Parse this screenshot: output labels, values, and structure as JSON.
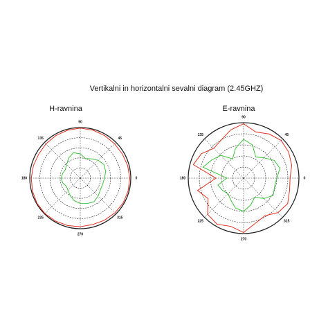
{
  "title": "Vertikalni in horizontalni sevalni diagram (2.45GHZ)",
  "chart_data": [
    {
      "type": "polar",
      "title": "H-ravnina",
      "angle_ticks": [
        0,
        45,
        90,
        135,
        180,
        225,
        270,
        315
      ],
      "rlim": [
        0,
        5
      ],
      "rticks": [
        1,
        2,
        3,
        4,
        5
      ],
      "theta": [
        0,
        15,
        30,
        45,
        60,
        75,
        90,
        105,
        120,
        135,
        150,
        165,
        180,
        195,
        210,
        225,
        240,
        255,
        270,
        285,
        300,
        315,
        330,
        345
      ],
      "series": [
        {
          "color": "#e03020",
          "values": [
            4.9,
            4.85,
            4.8,
            4.8,
            4.85,
            4.9,
            4.95,
            4.9,
            4.85,
            4.8,
            4.75,
            4.8,
            4.85,
            4.9,
            4.95,
            4.95,
            4.9,
            4.85,
            4.8,
            4.75,
            4.8,
            4.85,
            4.9,
            4.9
          ]
        },
        {
          "color": "#40c040",
          "values": [
            2.4,
            2.6,
            2.7,
            2.5,
            2.2,
            2.0,
            2.4,
            2.6,
            2.3,
            1.9,
            1.7,
            1.8,
            1.9,
            1.8,
            1.6,
            1.7,
            2.0,
            2.3,
            2.5,
            2.6,
            2.7,
            2.5,
            2.3,
            2.3
          ]
        }
      ]
    },
    {
      "type": "polar",
      "title": "E-ravnina",
      "angle_ticks": [
        0,
        45,
        90,
        135,
        180,
        225,
        270,
        315
      ],
      "rlim": [
        0,
        5
      ],
      "rticks": [
        1,
        2,
        3,
        4,
        5
      ],
      "theta": [
        0,
        15,
        30,
        45,
        60,
        75,
        90,
        105,
        120,
        135,
        150,
        165,
        180,
        195,
        210,
        225,
        240,
        255,
        270,
        285,
        300,
        315,
        330,
        345
      ],
      "series": [
        {
          "color": "#e03020",
          "values": [
            4.2,
            4.5,
            4.7,
            4.8,
            4.6,
            4.3,
            4.9,
            4.5,
            4.0,
            3.8,
            4.4,
            4.7,
            2.5,
            4.3,
            3.7,
            4.6,
            4.8,
            4.5,
            4.9,
            4.2,
            3.9,
            4.4,
            4.6,
            4.3
          ]
        },
        {
          "color": "#40c040",
          "values": [
            3.0,
            3.4,
            3.2,
            2.6,
            2.2,
            3.1,
            3.5,
            2.8,
            2.0,
            2.9,
            3.3,
            3.8,
            1.5,
            2.4,
            2.2,
            2.0,
            2.3,
            2.8,
            3.0,
            2.5,
            2.0,
            2.6,
            3.1,
            2.9
          ]
        }
      ]
    }
  ]
}
